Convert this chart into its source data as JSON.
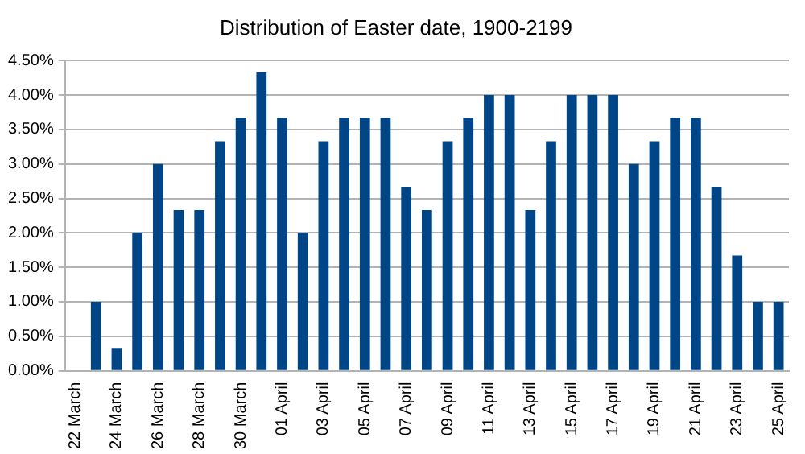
{
  "chart_data": {
    "type": "bar",
    "title": "Distribution of Easter date, 1900-2199",
    "categories": [
      "22 March",
      null,
      "24 March",
      null,
      "26 March",
      null,
      "28 March",
      null,
      "30 March",
      null,
      "01 April",
      null,
      "03 April",
      null,
      "05 April",
      null,
      "07 April",
      null,
      "09 April",
      null,
      "11 April",
      null,
      "13 April",
      null,
      "15 April",
      null,
      "17 April",
      null,
      "19 April",
      null,
      "21 April",
      null,
      "23 April",
      null,
      "25 April"
    ],
    "values": [
      0,
      1.0,
      0.33,
      2.0,
      3.0,
      2.33,
      2.33,
      3.33,
      3.67,
      4.33,
      3.67,
      2.0,
      3.33,
      3.67,
      3.67,
      3.67,
      2.67,
      2.33,
      3.33,
      3.67,
      4.0,
      4.0,
      2.33,
      3.33,
      4.0,
      4.0,
      4.0,
      3.0,
      3.33,
      3.67,
      3.67,
      2.67,
      1.67,
      1.0,
      1.0
    ],
    "color": "#004586",
    "ylim": [
      0,
      4.5
    ],
    "yticks": [
      {
        "value": 0,
        "label": "0.00%"
      },
      {
        "value": 0.5,
        "label": "0.50%"
      },
      {
        "value": 1,
        "label": "1.00%"
      },
      {
        "value": 1.5,
        "label": "1.50%"
      },
      {
        "value": 2,
        "label": "2.00%"
      },
      {
        "value": 2.5,
        "label": "2.50%"
      },
      {
        "value": 3,
        "label": "3.00%"
      },
      {
        "value": 3.5,
        "label": "3.50%"
      },
      {
        "value": 4,
        "label": "4.00%"
      },
      {
        "value": 4.5,
        "label": "4.50%"
      }
    ],
    "grid": "y"
  }
}
